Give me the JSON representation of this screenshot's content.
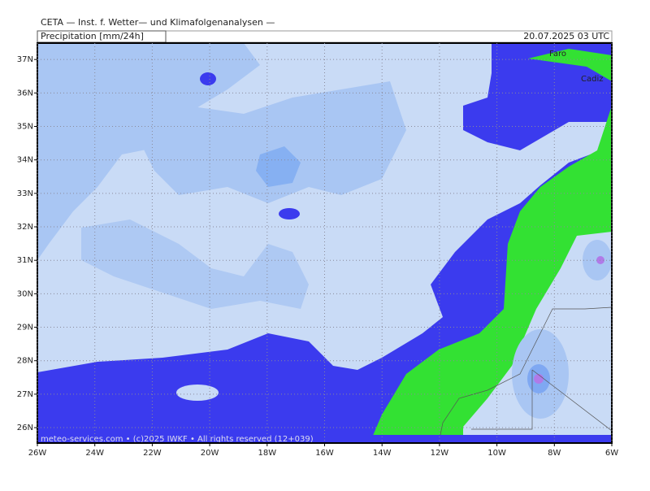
{
  "header": {
    "title": "CETA — Inst. f. Wetter— und Klimafolgenanalysen —",
    "product": "Precipitation [mm/24h]",
    "valid": "20.07.2025 03 UTC"
  },
  "map": {
    "lonlim": [
      -26,
      -6
    ],
    "latlim": [
      25.54,
      37.49
    ],
    "lat_ticks": [
      {
        "value": 37,
        "label": "37N"
      },
      {
        "value": 36,
        "label": "36N"
      },
      {
        "value": 35,
        "label": "35N"
      },
      {
        "value": 34,
        "label": "34N"
      },
      {
        "value": 33,
        "label": "33N"
      },
      {
        "value": 32,
        "label": "32N"
      },
      {
        "value": 31,
        "label": "31N"
      },
      {
        "value": 30,
        "label": "30N"
      },
      {
        "value": 29,
        "label": "29N"
      },
      {
        "value": 28,
        "label": "28N"
      },
      {
        "value": 27,
        "label": "27N"
      },
      {
        "value": 26,
        "label": "26N"
      }
    ],
    "lon_ticks": [
      {
        "value": -26,
        "label": "26W"
      },
      {
        "value": -24,
        "label": "24W"
      },
      {
        "value": -22,
        "label": "22W"
      },
      {
        "value": -20,
        "label": "20W"
      },
      {
        "value": -18,
        "label": "18W"
      },
      {
        "value": -16,
        "label": "16W"
      },
      {
        "value": -14,
        "label": "14W"
      },
      {
        "value": -12,
        "label": "12W"
      },
      {
        "value": -10,
        "label": "10W"
      },
      {
        "value": -8,
        "label": "8W"
      },
      {
        "value": -6,
        "label": "6W"
      }
    ],
    "places": [
      "Faro",
      "Cadiz"
    ],
    "footer": "meteo-services.com • (c)2025 IWKF • All rights reserved (12+039)"
  }
}
